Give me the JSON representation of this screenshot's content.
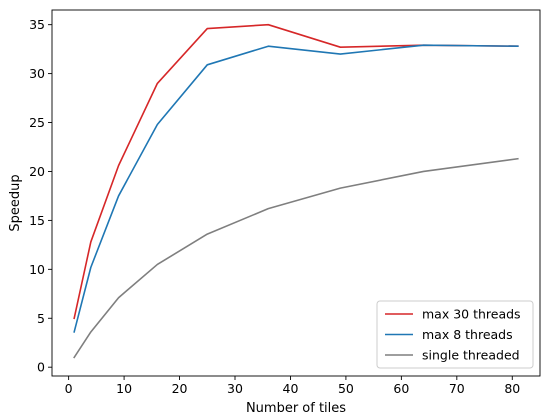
{
  "chart_data": {
    "type": "line",
    "title": "",
    "xlabel": "Number of tiles",
    "ylabel": "Speedup",
    "xlim": [
      -3,
      85
    ],
    "ylim": [
      -0.9,
      36.5
    ],
    "x_ticks": [
      0,
      10,
      20,
      30,
      40,
      50,
      60,
      70,
      80
    ],
    "y_ticks": [
      0,
      5,
      10,
      15,
      20,
      25,
      30,
      35
    ],
    "grid": false,
    "legend_position": "bottom-right",
    "series": [
      {
        "name": "max 30 threads",
        "color": "#d62728",
        "points": [
          [
            1,
            5.0
          ],
          [
            4,
            12.8
          ],
          [
            9,
            20.6
          ],
          [
            16,
            29.0
          ],
          [
            25,
            34.6
          ],
          [
            36,
            35.0
          ],
          [
            49,
            32.7
          ],
          [
            64,
            32.9
          ],
          [
            81,
            32.8
          ]
        ]
      },
      {
        "name": "max 8 threads",
        "color": "#1f77b4",
        "points": [
          [
            1,
            3.6
          ],
          [
            4,
            10.2
          ],
          [
            9,
            17.5
          ],
          [
            16,
            24.8
          ],
          [
            25,
            30.9
          ],
          [
            36,
            32.8
          ],
          [
            49,
            32.0
          ],
          [
            64,
            32.9
          ],
          [
            81,
            32.8
          ]
        ]
      },
      {
        "name": "single threaded",
        "color": "#7f7f7f",
        "points": [
          [
            1,
            1.0
          ],
          [
            4,
            3.6
          ],
          [
            9,
            7.1
          ],
          [
            16,
            10.5
          ],
          [
            25,
            13.6
          ],
          [
            36,
            16.2
          ],
          [
            49,
            18.3
          ],
          [
            64,
            20.0
          ],
          [
            81,
            21.3
          ]
        ]
      }
    ]
  }
}
